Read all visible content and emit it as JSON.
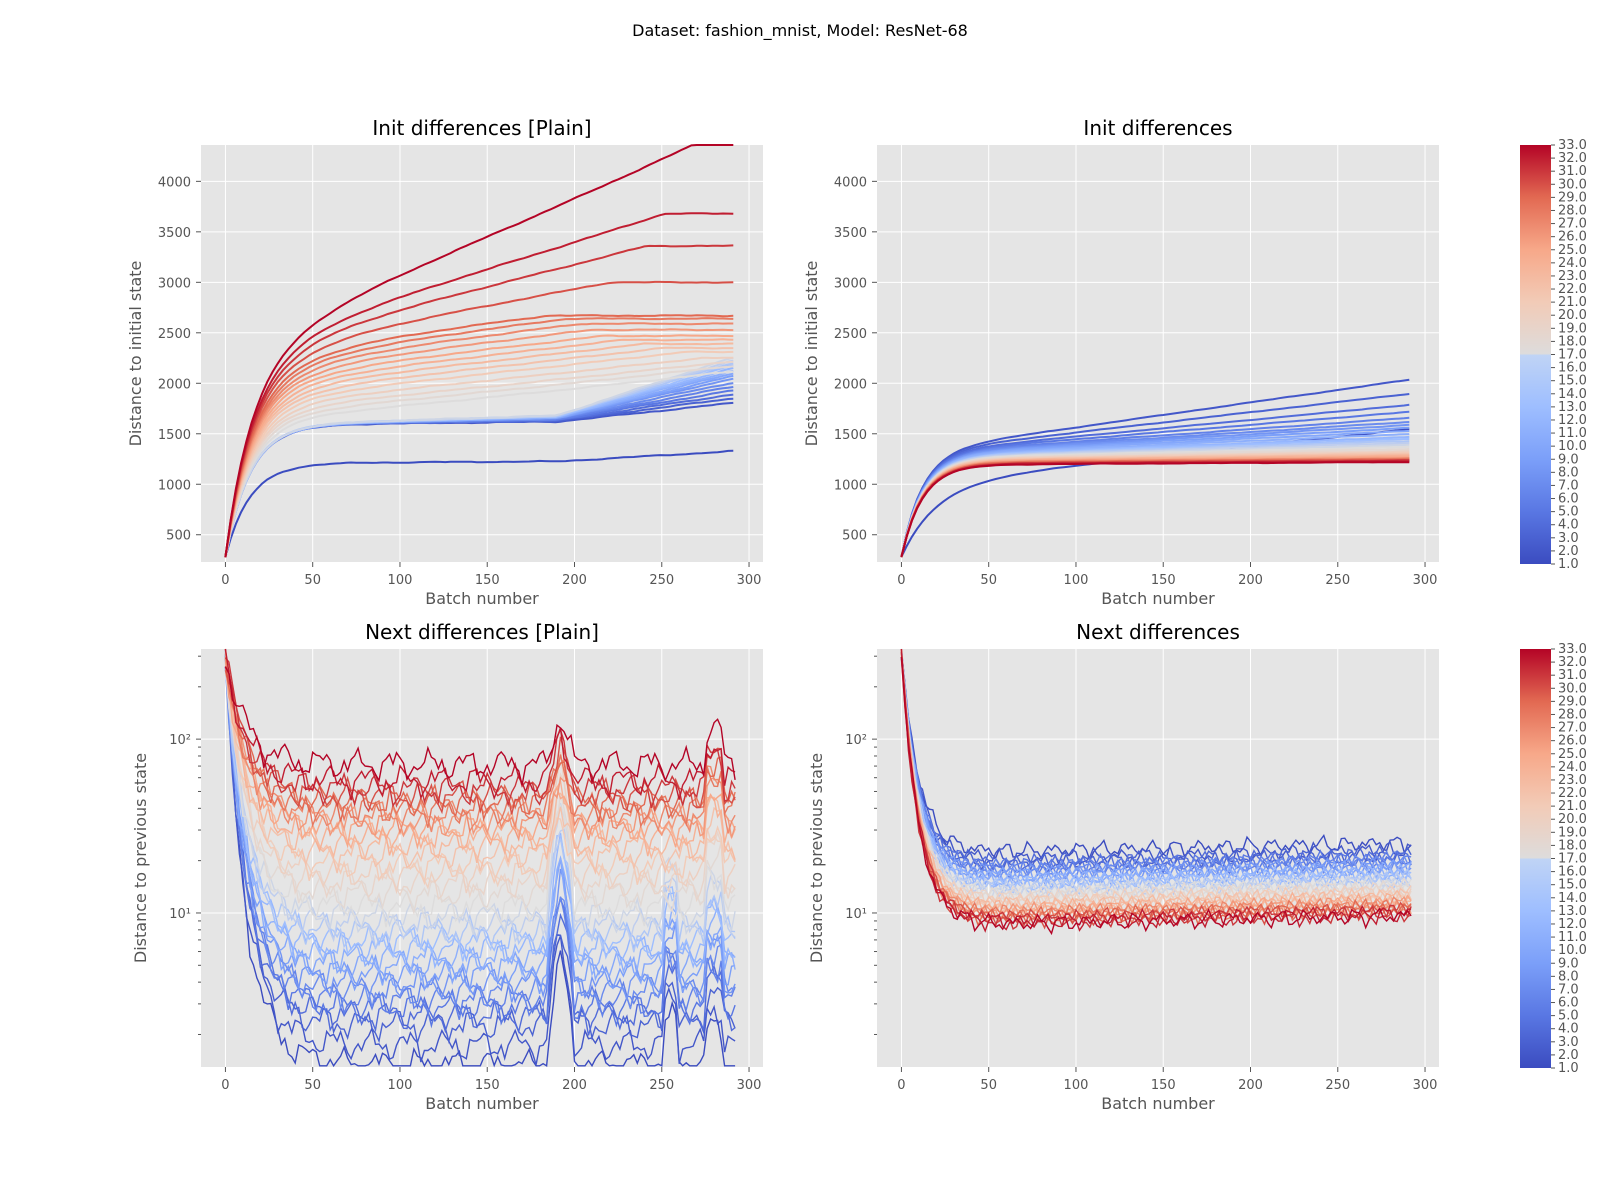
{
  "figure": {
    "suptitle": "Dataset: fashion_mnist, Model: ResNet-68"
  },
  "colors": {
    "panel_bg": "#e5e5e5",
    "grid": "#ffffff",
    "colormap": "coolwarm",
    "cmap_low": "#3b4cc0",
    "cmap_mid": "#dddddd",
    "cmap_high": "#b40426"
  },
  "colorbar": {
    "vmin": 1.0,
    "vmax": 33.0,
    "ticks": [
      "1.0",
      "2.0",
      "3.0",
      "4.0",
      "5.0",
      "6.0",
      "7.0",
      "8.0",
      "9.0",
      "10.0",
      "11.0",
      "12.0",
      "13.0",
      "14.0",
      "15.0",
      "16.0",
      "17.0",
      "18.0",
      "19.0",
      "20.0",
      "21.0",
      "22.0",
      "23.0",
      "24.0",
      "25.0",
      "26.0",
      "27.0",
      "28.0",
      "29.0",
      "30.0",
      "31.0",
      "32.0",
      "33.0"
    ]
  },
  "chart_data": [
    {
      "type": "line",
      "title": "Init differences [Plain]",
      "xlabel": "Batch number",
      "ylabel": "Distance to initial state",
      "xlim": [
        -14,
        308
      ],
      "ylim": [
        230,
        4360
      ],
      "yscale": "linear",
      "xticks": [
        0,
        50,
        100,
        150,
        200,
        250,
        300
      ],
      "yticks": [
        500,
        1000,
        1500,
        2000,
        2500,
        3000,
        3500,
        4000
      ],
      "grid": true,
      "colorbar": false,
      "color_by": "series index 1–33 on coolwarm colormap",
      "series_count": 33,
      "x_range": [
        0,
        293
      ],
      "series_final_values": [
        1300,
        1755,
        1790,
        1820,
        1850,
        1880,
        1910,
        1940,
        1960,
        1980,
        2000,
        2020,
        2040,
        2060,
        2080,
        2100,
        2150,
        2180,
        2200,
        2240,
        2300,
        2340,
        2380,
        2420,
        2460,
        2520,
        2580,
        2630,
        2660,
        2990,
        3350,
        3670,
        4360
      ]
    },
    {
      "type": "line",
      "title": "Init differences",
      "xlabel": "Batch number",
      "ylabel": "Distance to initial state",
      "xlim": [
        -14,
        308
      ],
      "ylim": [
        230,
        4360
      ],
      "yscale": "linear",
      "xticks": [
        0,
        50,
        100,
        150,
        200,
        250,
        300
      ],
      "yticks": [
        500,
        1000,
        1500,
        2000,
        2500,
        3000,
        3500,
        4000
      ],
      "grid": true,
      "colorbar": true,
      "color_by": "series index 1–33 on coolwarm colormap",
      "series_count": 33,
      "x_range": [
        0,
        293
      ],
      "series_final_values": [
        1550,
        2040,
        1900,
        1790,
        1720,
        1660,
        1620,
        1590,
        1560,
        1530,
        1500,
        1470,
        1450,
        1430,
        1410,
        1390,
        1370,
        1350,
        1330,
        1320,
        1310,
        1300,
        1290,
        1280,
        1270,
        1260,
        1255,
        1250,
        1245,
        1240,
        1235,
        1228,
        1220
      ]
    },
    {
      "type": "line",
      "title": "Next differences [Plain]",
      "xlabel": "Batch number",
      "ylabel": "Distance to previous state",
      "xlim": [
        -14,
        308
      ],
      "ylim": [
        1.3,
        330
      ],
      "yscale": "log",
      "xticks": [
        0,
        50,
        100,
        150,
        200,
        250,
        300
      ],
      "yticks_major": [
        10,
        100
      ],
      "yticklabels": [
        "10¹",
        "10²"
      ],
      "grid": true,
      "colorbar": false,
      "color_by": "series index 1–33 on coolwarm colormap",
      "series_count": 33,
      "x_range": [
        0,
        293
      ],
      "series_plateau_values": [
        1.35,
        1.75,
        2.3,
        2.6,
        2.9,
        3.2,
        3.6,
        4.0,
        4.5,
        5.0,
        5.6,
        6.3,
        7.0,
        7.8,
        8.7,
        9.7,
        11,
        13,
        15,
        17,
        19,
        22,
        25,
        28,
        31,
        34,
        37,
        40,
        44,
        48,
        52,
        58,
        72
      ]
    },
    {
      "type": "line",
      "title": "Next differences",
      "xlabel": "Batch number",
      "ylabel": "Distance to previous state",
      "xlim": [
        -14,
        308
      ],
      "ylim": [
        1.3,
        330
      ],
      "yscale": "log",
      "xticks": [
        0,
        50,
        100,
        150,
        200,
        250,
        300
      ],
      "yticks_major": [
        10,
        100
      ],
      "yticklabels": [
        "10¹",
        "10²"
      ],
      "grid": true,
      "colorbar": true,
      "color_by": "series index 1–33 on coolwarm colormap",
      "series_count": 33,
      "x_range": [
        0,
        293
      ],
      "series_plateau_values": [
        22,
        20,
        19,
        18.5,
        18,
        17.5,
        17,
        16.5,
        16,
        15.5,
        15,
        14.6,
        14.2,
        13.8,
        13.4,
        13,
        12.6,
        12.2,
        11.8,
        11.5,
        11.2,
        10.9,
        10.6,
        10.3,
        10.0,
        9.8,
        9.6,
        9.4,
        9.2,
        9.0,
        8.8,
        8.6,
        8.4
      ]
    }
  ]
}
